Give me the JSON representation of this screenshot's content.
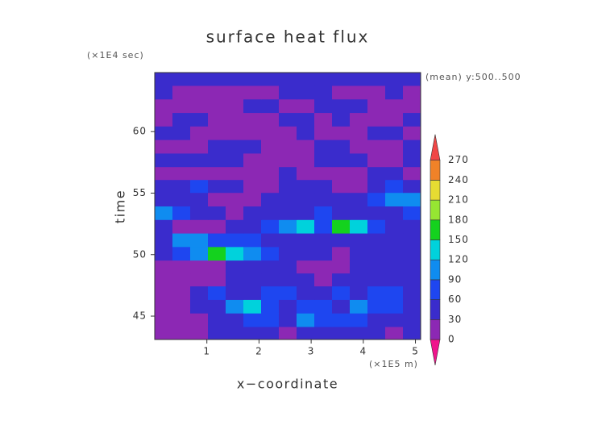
{
  "chart_data": {
    "type": "heatmap",
    "title": "surface heat flux",
    "y_unit": "(×1E4 sec)",
    "x_unit": "(×1E5 m)",
    "annotation": "(mean) y:500..500",
    "xlabel": "x−coordinate",
    "ylabel": "time",
    "xlim": [
      0,
      5.1
    ],
    "ylim": [
      43.1,
      64.8
    ],
    "xticks": [
      1,
      2,
      3,
      4,
      5
    ],
    "yticks": [
      45,
      50,
      55,
      60
    ],
    "levels": [
      0,
      30,
      60,
      90,
      120,
      150,
      180,
      210,
      240,
      270
    ],
    "colors": [
      "#f0148c",
      "#8c28b4",
      "#3a2ccc",
      "#1e46f0",
      "#0f8cf0",
      "#00d2dc",
      "#14d21e",
      "#96e632",
      "#e6dc32",
      "#f08228",
      "#f04646"
    ],
    "x": [
      0.17,
      0.51,
      0.85,
      1.19,
      1.53,
      1.87,
      2.21,
      2.55,
      2.89,
      3.23,
      3.57,
      3.91,
      4.25,
      4.59,
      4.93
    ],
    "y": [
      43.6,
      44.7,
      45.8,
      46.9,
      48.0,
      49.0,
      50.1,
      51.2,
      52.3,
      53.4,
      54.5,
      55.6,
      56.6,
      57.7,
      58.8,
      59.9,
      61.0,
      62.1,
      63.2,
      64.3
    ],
    "z": [
      [
        20,
        15,
        20,
        40,
        45,
        35,
        40,
        20,
        40,
        30,
        40,
        50,
        45,
        20,
        40
      ],
      [
        15,
        15,
        20,
        45,
        50,
        70,
        60,
        50,
        90,
        60,
        70,
        60,
        40,
        45,
        40
      ],
      [
        15,
        20,
        40,
        50,
        90,
        130,
        60,
        50,
        60,
        70,
        50,
        110,
        60,
        60,
        30
      ],
      [
        15,
        20,
        45,
        60,
        50,
        45,
        70,
        60,
        50,
        40,
        60,
        50,
        80,
        70,
        40
      ],
      [
        20,
        15,
        15,
        20,
        40,
        45,
        50,
        45,
        30,
        20,
        40,
        45,
        40,
        50,
        45
      ],
      [
        20,
        25,
        20,
        15,
        40,
        50,
        45,
        30,
        20,
        15,
        20,
        30,
        40,
        50,
        30
      ],
      [
        40,
        60,
        90,
        150,
        130,
        90,
        60,
        45,
        40,
        30,
        25,
        40,
        50,
        45,
        40
      ],
      [
        50,
        90,
        110,
        60,
        70,
        80,
        50,
        40,
        40,
        45,
        50,
        40,
        30,
        40,
        45
      ],
      [
        30,
        20,
        15,
        20,
        45,
        50,
        70,
        100,
        120,
        80,
        150,
        120,
        60,
        45,
        40
      ],
      [
        110,
        60,
        40,
        30,
        20,
        45,
        50,
        45,
        40,
        60,
        50,
        45,
        40,
        45,
        60
      ],
      [
        45,
        50,
        40,
        20,
        15,
        20,
        30,
        40,
        50,
        45,
        40,
        50,
        60,
        90,
        100
      ],
      [
        40,
        45,
        60,
        50,
        40,
        15,
        10,
        40,
        45,
        50,
        20,
        15,
        40,
        60,
        45
      ],
      [
        20,
        15,
        15,
        20,
        10,
        15,
        20,
        40,
        15,
        10,
        15,
        20,
        40,
        45,
        20
      ],
      [
        40,
        45,
        50,
        40,
        45,
        20,
        15,
        10,
        15,
        40,
        45,
        40,
        15,
        15,
        40
      ],
      [
        15,
        15,
        20,
        40,
        50,
        40,
        20,
        15,
        15,
        40,
        40,
        15,
        15,
        20,
        40
      ],
      [
        45,
        40,
        15,
        15,
        15,
        20,
        15,
        15,
        40,
        15,
        15,
        15,
        40,
        40,
        15
      ],
      [
        15,
        40,
        45,
        15,
        15,
        15,
        15,
        40,
        45,
        15,
        40,
        20,
        15,
        15,
        45
      ],
      [
        15,
        15,
        15,
        15,
        15,
        45,
        45,
        15,
        15,
        40,
        45,
        40,
        15,
        15,
        15
      ],
      [
        40,
        15,
        15,
        15,
        15,
        15,
        15,
        40,
        45,
        40,
        15,
        15,
        15,
        40,
        15
      ],
      [
        40,
        45,
        50,
        40,
        40,
        45,
        50,
        45,
        40,
        40,
        45,
        40,
        45,
        50,
        45
      ]
    ]
  }
}
